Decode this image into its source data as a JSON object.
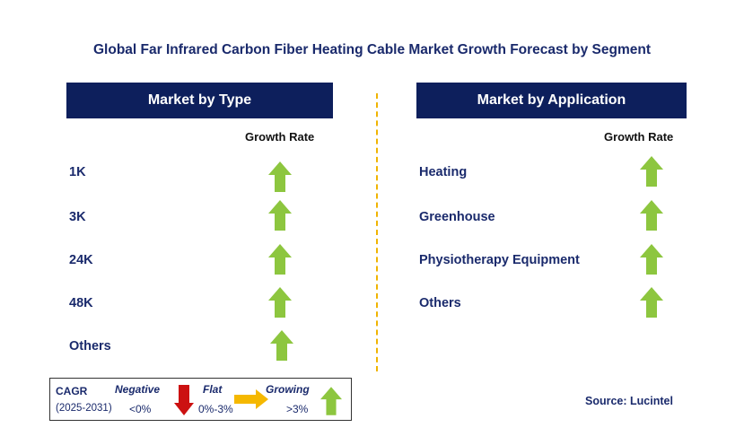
{
  "title": "Global Far Infrared Carbon Fiber Heating Cable Market Growth Forecast by Segment",
  "left_panel": {
    "header": "Market by Type",
    "growth_label": "Growth Rate",
    "rows": [
      {
        "label": "1K",
        "trend": "growing"
      },
      {
        "label": "3K",
        "trend": "growing"
      },
      {
        "label": "24K",
        "trend": "growing"
      },
      {
        "label": "48K",
        "trend": "growing"
      },
      {
        "label": "Others",
        "trend": "growing"
      }
    ]
  },
  "right_panel": {
    "header": "Market by Application",
    "growth_label": "Growth Rate",
    "rows": [
      {
        "label": "Heating",
        "trend": "growing"
      },
      {
        "label": "Greenhouse",
        "trend": "growing"
      },
      {
        "label": "Physiotherapy Equipment",
        "trend": "growing"
      },
      {
        "label": "Others",
        "trend": "growing"
      }
    ]
  },
  "legend": {
    "cagr_label": "CAGR",
    "period": "(2025-2031)",
    "negative_label": "Negative",
    "negative_value": "<0%",
    "flat_label": "Flat",
    "flat_value": "0%-3%",
    "growing_label": "Growing",
    "growing_value": ">3%"
  },
  "source": "Source: Lucintel",
  "colors": {
    "header_bg": "#0d1f5c",
    "growing": "#8dc63f",
    "negative": "#cc1111",
    "flat": "#f5b800",
    "divider": "#f0b400"
  },
  "icons": {
    "growing": "green-up-arrow-icon",
    "negative": "red-down-arrow-icon",
    "flat": "yellow-right-arrow-icon"
  }
}
